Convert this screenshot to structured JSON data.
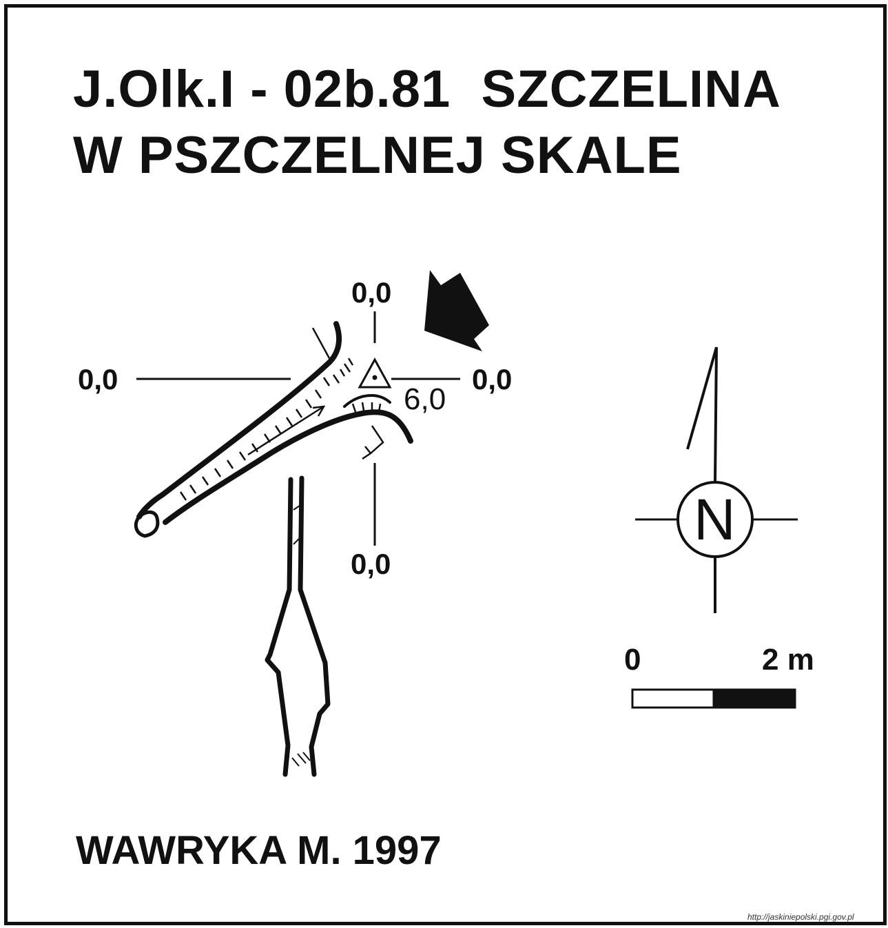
{
  "title": {
    "line1": "J.Olk.I - 02b.81  SZCZELINA",
    "line2": "W PSZCZELNEJ SKALE"
  },
  "cross_section_labels": {
    "top": "0,0",
    "left": "0,0",
    "right": "0,0",
    "bottom": "0,0"
  },
  "depth_label": "6,0",
  "compass": {
    "letter": "N",
    "icon": "north-arrow-icon"
  },
  "scale_bar": {
    "start_label": "0",
    "end_label": "2 m"
  },
  "author": "WAWRYKA M. 1997",
  "source_url": "http://jaskiniepolski.pgi.gov.pl",
  "colors": {
    "ink": "#111111",
    "paper": "#ffffff"
  }
}
